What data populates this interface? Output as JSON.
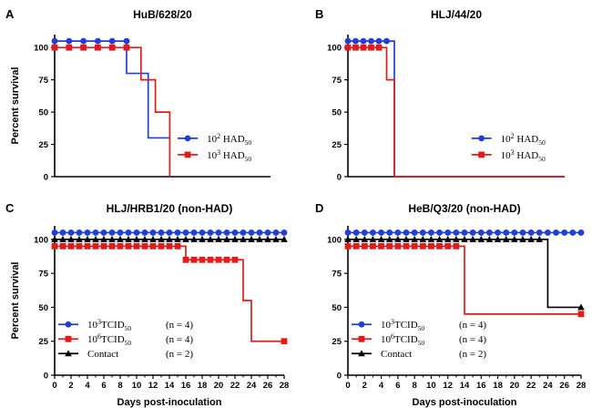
{
  "figure": {
    "ylabel": "Percent survival",
    "xlabel": "Days post-inoculation"
  },
  "chart_data": [
    {
      "panel": "A",
      "type": "line",
      "title": "HuB/628/20",
      "ylabel": "Percent survival",
      "xlabel": "",
      "xlim": [
        0,
        15
      ],
      "ylim": [
        0,
        110
      ],
      "yticks": [
        "0",
        "25",
        "50",
        "75",
        "100"
      ],
      "xticks": [],
      "show_x_ticks": false,
      "legend_position": "center-right",
      "series": [
        {
          "name": "10² HAD₅₀",
          "label_base": "10",
          "label_sup": "2",
          "label_main": " HAD",
          "label_sub": "50",
          "count": "",
          "color": "#1f3fd6",
          "marker": "circle",
          "x": [
            0,
            5,
            5,
            6.5,
            6.5,
            8
          ],
          "y": [
            105,
            105,
            80,
            80,
            30,
            30
          ],
          "markers_x": [
            0,
            1,
            2,
            3,
            4,
            5
          ],
          "markers_y": [
            105,
            105,
            105,
            105,
            105,
            105
          ]
        },
        {
          "name": "10³ HAD₅₀",
          "label_base": "10",
          "label_sup": "3",
          "label_main": " HAD",
          "label_sub": "50",
          "count": "",
          "color": "#e31a1a",
          "marker": "square",
          "x": [
            0,
            6,
            6,
            7,
            7,
            8,
            8
          ],
          "y": [
            100,
            100,
            75,
            75,
            50,
            50,
            0
          ],
          "markers_x": [
            0,
            1,
            2,
            3,
            4,
            5
          ],
          "markers_y": [
            100,
            100,
            100,
            100,
            100,
            100
          ]
        }
      ]
    },
    {
      "panel": "B",
      "type": "line",
      "title": "HLJ/44/20",
      "ylabel": "",
      "xlabel": "",
      "xlim": [
        0,
        28
      ],
      "ylim": [
        0,
        110
      ],
      "yticks": [
        "0",
        "25",
        "50",
        "75",
        "100"
      ],
      "xticks": [],
      "show_x_ticks": false,
      "legend_position": "center-right",
      "series": [
        {
          "name": "10² HAD₅₀",
          "label_base": "10",
          "label_sup": "2",
          "label_main": " HAD",
          "label_sub": "50",
          "count": "",
          "color": "#1f3fd6",
          "marker": "circle",
          "x": [
            0,
            6,
            6,
            28
          ],
          "y": [
            105,
            105,
            0,
            0
          ],
          "markers_x": [
            0,
            1,
            2,
            3,
            4,
            5
          ],
          "markers_y": [
            105,
            105,
            105,
            105,
            105,
            105
          ]
        },
        {
          "name": "10³ HAD₅₀",
          "label_base": "10",
          "label_sup": "3",
          "label_main": " HAD",
          "label_sub": "50",
          "count": "",
          "color": "#e31a1a",
          "marker": "square",
          "x": [
            0,
            5,
            5,
            6,
            6,
            28
          ],
          "y": [
            100,
            100,
            75,
            75,
            0,
            0
          ],
          "markers_x": [
            0,
            1,
            2,
            3,
            4
          ],
          "markers_y": [
            100,
            100,
            100,
            100,
            100
          ]
        }
      ]
    },
    {
      "panel": "C",
      "type": "line",
      "title": "HLJ/HRB1/20 (non-HAD)",
      "ylabel": "Percent survival",
      "xlabel": "Days post-inoculation",
      "xlim": [
        0,
        28
      ],
      "ylim": [
        0,
        110
      ],
      "yticks": [
        "0",
        "25",
        "50",
        "75",
        "100"
      ],
      "xticks": [
        "0",
        "2",
        "4",
        "6",
        "8",
        "10",
        "12",
        "14",
        "16",
        "18",
        "20",
        "22",
        "24",
        "26",
        "28"
      ],
      "show_x_ticks": true,
      "legend_position": "bottom-left",
      "series": [
        {
          "name": "10³TCID₅₀ (n = 4)",
          "label_base": "10",
          "label_sup": "3",
          "label_main": "TCID",
          "label_sub": "50",
          "count": "(n = 4)",
          "color": "#1f3fd6",
          "marker": "circle",
          "x": [
            0,
            28
          ],
          "y": [
            105,
            105
          ],
          "markers_x": [
            0,
            1,
            2,
            3,
            4,
            5,
            6,
            7,
            8,
            9,
            10,
            11,
            12,
            13,
            14,
            15,
            16,
            17,
            18,
            19,
            20,
            21,
            22,
            23,
            24,
            25,
            26,
            27,
            28
          ],
          "markers_y": [
            105,
            105,
            105,
            105,
            105,
            105,
            105,
            105,
            105,
            105,
            105,
            105,
            105,
            105,
            105,
            105,
            105,
            105,
            105,
            105,
            105,
            105,
            105,
            105,
            105,
            105,
            105,
            105,
            105
          ]
        },
        {
          "name": "10⁶TCID₅₀ (n = 4)",
          "label_base": "10",
          "label_sup": "6",
          "label_main": "TCID",
          "label_sub": "50",
          "count": "(n = 4)",
          "color": "#e31a1a",
          "marker": "square",
          "x": [
            0,
            16,
            16,
            23,
            23,
            24,
            24,
            28
          ],
          "y": [
            95,
            95,
            85,
            85,
            55,
            55,
            25,
            25
          ],
          "markers_x": [
            0,
            1,
            2,
            3,
            4,
            5,
            6,
            7,
            8,
            9,
            10,
            11,
            12,
            13,
            14,
            15,
            16,
            17,
            18,
            19,
            20,
            21,
            22,
            28
          ],
          "markers_y": [
            95,
            95,
            95,
            95,
            95,
            95,
            95,
            95,
            95,
            95,
            95,
            95,
            95,
            95,
            95,
            95,
            85,
            85,
            85,
            85,
            85,
            85,
            85,
            25
          ]
        },
        {
          "name": "Contact (n = 2)",
          "label_base": "Contact",
          "label_sup": "",
          "label_main": "",
          "label_sub": "",
          "count": "(n = 2)",
          "color": "#000000",
          "marker": "triangle",
          "x": [
            0,
            28
          ],
          "y": [
            100,
            100
          ],
          "markers_x": [
            0,
            1,
            2,
            3,
            4,
            5,
            6,
            7,
            8,
            9,
            10,
            11,
            12,
            13,
            14,
            15,
            16,
            17,
            18,
            19,
            20,
            21,
            22,
            23,
            24,
            25,
            26,
            27,
            28
          ],
          "markers_y": [
            100,
            100,
            100,
            100,
            100,
            100,
            100,
            100,
            100,
            100,
            100,
            100,
            100,
            100,
            100,
            100,
            100,
            100,
            100,
            100,
            100,
            100,
            100,
            100,
            100,
            100,
            100,
            100,
            100
          ]
        }
      ]
    },
    {
      "panel": "D",
      "type": "line",
      "title": "HeB/Q3/20 (non-HAD)",
      "ylabel": "",
      "xlabel": "Days post-inoculation",
      "xlim": [
        0,
        28
      ],
      "ylim": [
        0,
        110
      ],
      "yticks": [
        "0",
        "25",
        "50",
        "75",
        "100"
      ],
      "xticks": [
        "0",
        "2",
        "4",
        "6",
        "8",
        "10",
        "12",
        "14",
        "16",
        "18",
        "20",
        "22",
        "24",
        "26",
        "28"
      ],
      "show_x_ticks": true,
      "legend_position": "bottom-left",
      "series": [
        {
          "name": "10³TCID₅₀ (n = 4)",
          "label_base": "10",
          "label_sup": "3",
          "label_main": "TCID",
          "label_sub": "50",
          "count": "(n = 4)",
          "color": "#1f3fd6",
          "marker": "circle",
          "x": [
            0,
            28
          ],
          "y": [
            105,
            105
          ],
          "markers_x": [
            0,
            1,
            2,
            3,
            4,
            5,
            6,
            7,
            8,
            9,
            10,
            11,
            12,
            13,
            14,
            15,
            16,
            17,
            18,
            19,
            20,
            21,
            22,
            23,
            24,
            25,
            26,
            27,
            28
          ],
          "markers_y": [
            105,
            105,
            105,
            105,
            105,
            105,
            105,
            105,
            105,
            105,
            105,
            105,
            105,
            105,
            105,
            105,
            105,
            105,
            105,
            105,
            105,
            105,
            105,
            105,
            105,
            105,
            105,
            105,
            105
          ]
        },
        {
          "name": "10⁶TCID₅₀ (n = 4)",
          "label_base": "10",
          "label_sup": "6",
          "label_main": "TCID",
          "label_sub": "50",
          "count": "(n = 4)",
          "color": "#e31a1a",
          "marker": "square",
          "x": [
            0,
            14,
            14,
            28
          ],
          "y": [
            95,
            95,
            45,
            45
          ],
          "markers_x": [
            0,
            1,
            2,
            3,
            4,
            5,
            6,
            7,
            8,
            9,
            10,
            11,
            12,
            13,
            28
          ],
          "markers_y": [
            95,
            95,
            95,
            95,
            95,
            95,
            95,
            95,
            95,
            95,
            95,
            95,
            95,
            95,
            45
          ]
        },
        {
          "name": "Contact (n = 2)",
          "label_base": "Contact",
          "label_sup": "",
          "label_main": "",
          "label_sub": "",
          "count": "(n = 2)",
          "color": "#000000",
          "marker": "triangle",
          "x": [
            0,
            24,
            24,
            28
          ],
          "y": [
            100,
            100,
            50,
            50
          ],
          "markers_x": [
            0,
            1,
            2,
            3,
            4,
            5,
            6,
            7,
            8,
            9,
            10,
            11,
            12,
            13,
            14,
            15,
            16,
            17,
            18,
            19,
            20,
            21,
            22,
            23,
            28
          ],
          "markers_y": [
            100,
            100,
            100,
            100,
            100,
            100,
            100,
            100,
            100,
            100,
            100,
            100,
            100,
            100,
            100,
            100,
            100,
            100,
            100,
            100,
            100,
            100,
            100,
            100,
            50
          ]
        }
      ]
    }
  ]
}
